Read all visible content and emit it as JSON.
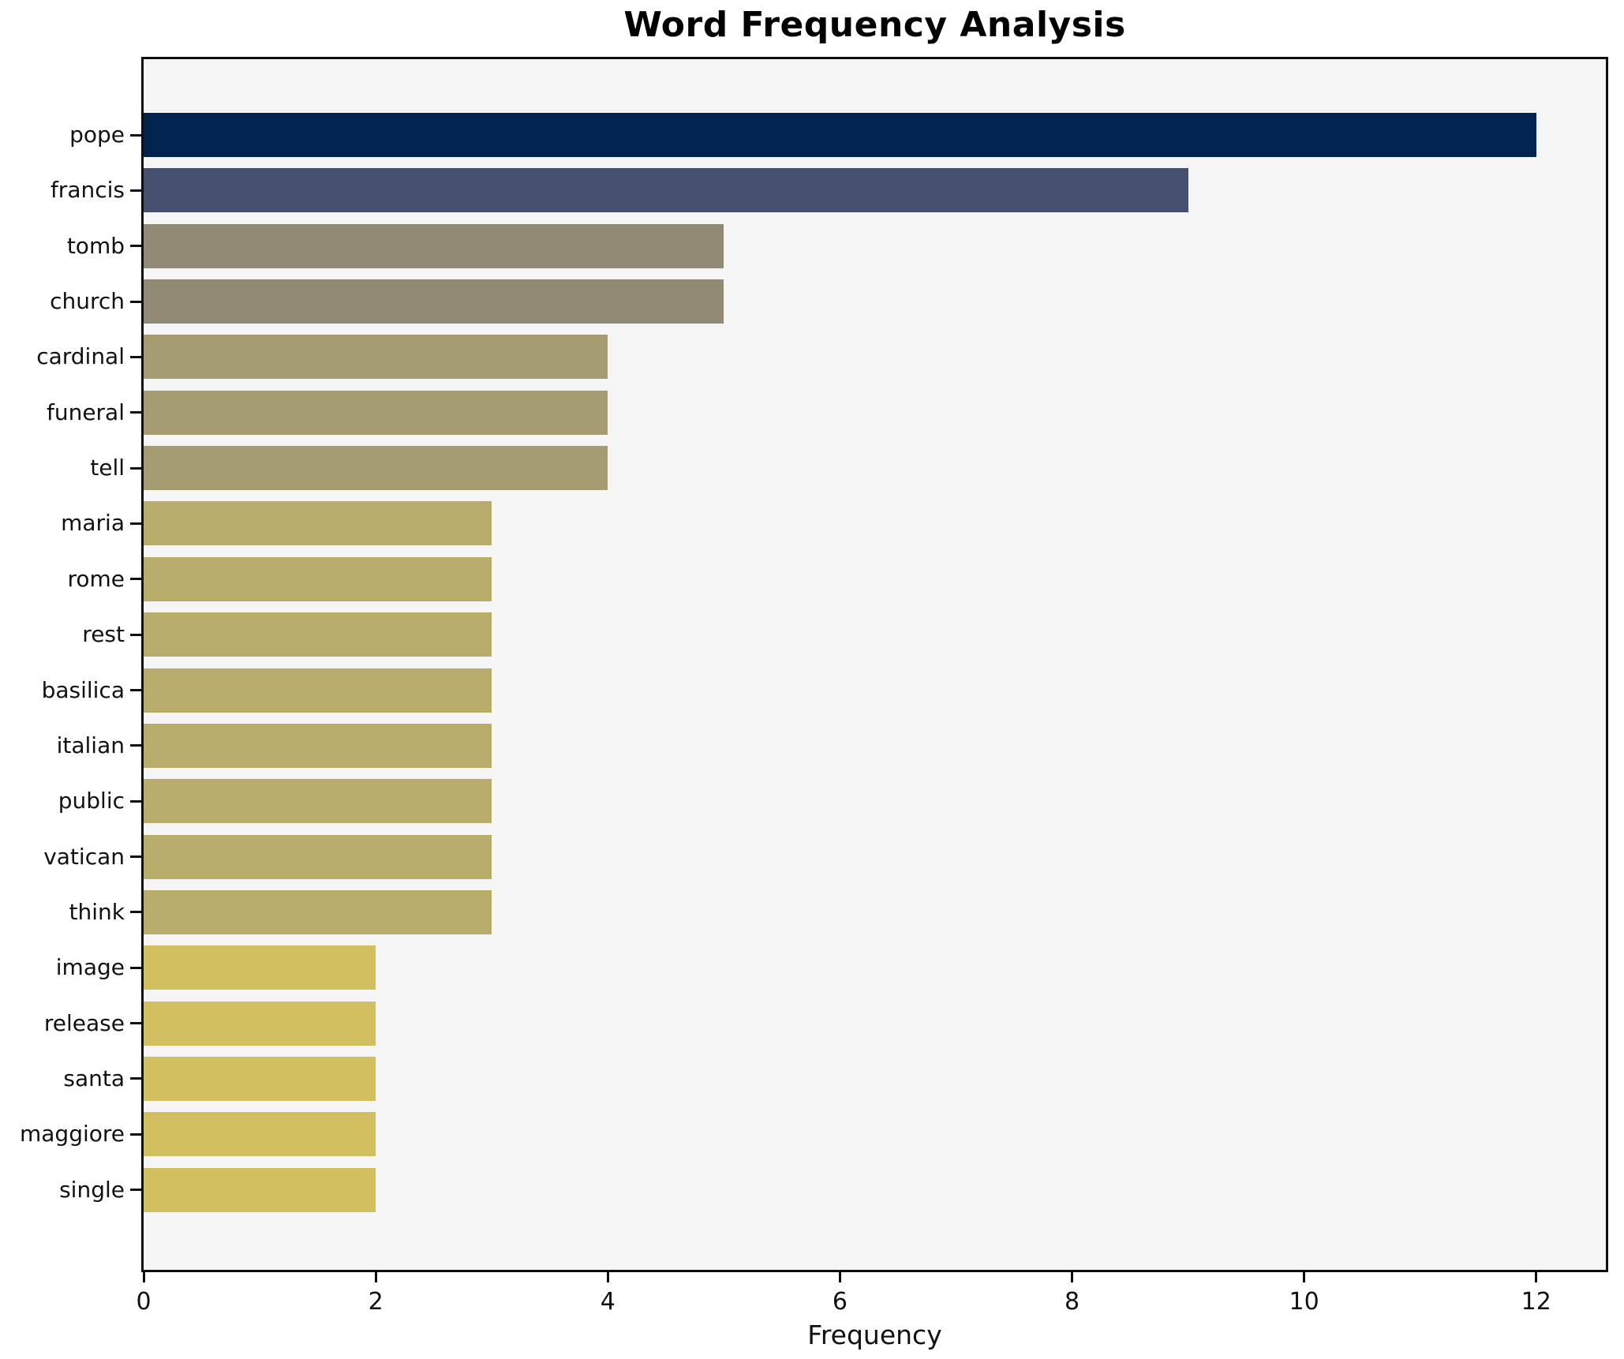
{
  "chart_data": {
    "type": "bar",
    "orientation": "horizontal",
    "title": "Word Frequency Analysis",
    "xlabel": "Frequency",
    "ylabel": "",
    "categories": [
      "pope",
      "francis",
      "tomb",
      "church",
      "cardinal",
      "funeral",
      "tell",
      "maria",
      "rome",
      "rest",
      "basilica",
      "italian",
      "public",
      "vatican",
      "think",
      "image",
      "release",
      "santa",
      "maggiore",
      "single"
    ],
    "values": [
      12,
      9,
      5,
      5,
      4,
      4,
      4,
      3,
      3,
      3,
      3,
      3,
      3,
      3,
      3,
      2,
      2,
      2,
      2,
      2
    ],
    "bar_colors": [
      "#02234e",
      "#454f6f",
      "#918a75",
      "#918a75",
      "#a59c71",
      "#a59c71",
      "#a59c71",
      "#b9ad6c",
      "#b9ad6c",
      "#b9ad6c",
      "#b9ad6c",
      "#b9ad6c",
      "#b9ad6c",
      "#b9ad6c",
      "#b9ad6c",
      "#d2bf5f",
      "#d2bf5f",
      "#d2bf5f",
      "#d2bf5f",
      "#d2bf5f"
    ],
    "xlim": [
      0,
      12.6
    ],
    "xticks": [
      0,
      2,
      4,
      6,
      8,
      10,
      12
    ],
    "grid": false,
    "legend": false,
    "plot_background": "#f5f5f6",
    "figure_background": "#ffffff",
    "frame_color": "#0e0e0e"
  }
}
